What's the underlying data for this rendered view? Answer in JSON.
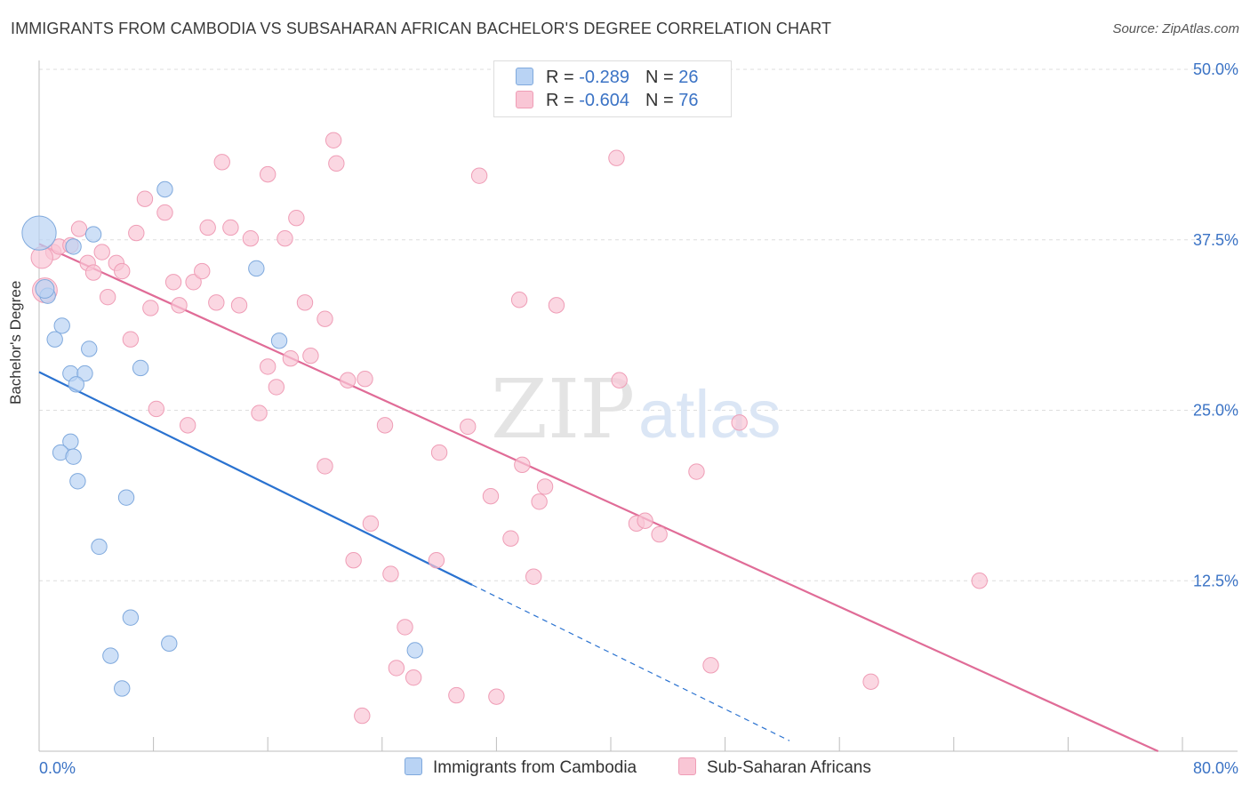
{
  "header": {
    "title": "IMMIGRANTS FROM CAMBODIA VS SUBSAHARAN AFRICAN BACHELOR'S DEGREE CORRELATION CHART",
    "source": "Source: ZipAtlas.com"
  },
  "colors": {
    "blue_fill": "#b9d3f4",
    "blue_stroke": "#7fa9dd",
    "blue_line": "#2a72d0",
    "pink_fill": "#f9c6d5",
    "pink_stroke": "#ef9db6",
    "pink_line": "#e06c97",
    "axis_text": "#3b73c5"
  },
  "legend": {
    "rows": [
      {
        "r_label": "R = ",
        "r_value": "-0.289",
        "n_label": "N = ",
        "n_value": "26"
      },
      {
        "r_label": "R = ",
        "r_value": "-0.604",
        "n_label": "N = ",
        "n_value": "76"
      }
    ]
  },
  "watermark": {
    "zip": "ZIP",
    "atlas": "atlas"
  },
  "chart_data": {
    "type": "scatter",
    "xlabel": "",
    "ylabel": "Bachelor's Degree",
    "xlim": [
      0,
      80
    ],
    "ylim": [
      0,
      50
    ],
    "x_tick_labels": [
      "0.0%",
      "80.0%"
    ],
    "y_tick_labels": [
      "12.5%",
      "25.0%",
      "37.5%",
      "50.0%"
    ],
    "y_ticks": [
      12.5,
      25.0,
      37.5,
      50.0
    ],
    "grid": true,
    "series": [
      {
        "name": "Immigrants from Cambodia",
        "r": -0.289,
        "n": 26,
        "trend": {
          "x0": 0,
          "y0": 27.8,
          "x1": 30.3,
          "y1": 12.2,
          "dash_to_x": 52.5
        },
        "points": [
          [
            0.0,
            38.0
          ],
          [
            0.6,
            33.4
          ],
          [
            0.4,
            33.9
          ],
          [
            2.4,
            37.0
          ],
          [
            3.8,
            37.9
          ],
          [
            1.1,
            30.2
          ],
          [
            1.6,
            31.2
          ],
          [
            3.5,
            29.5
          ],
          [
            2.2,
            27.7
          ],
          [
            3.2,
            27.7
          ],
          [
            2.6,
            26.9
          ],
          [
            7.1,
            28.1
          ],
          [
            8.8,
            41.2
          ],
          [
            15.2,
            35.4
          ],
          [
            16.8,
            30.1
          ],
          [
            2.2,
            22.7
          ],
          [
            1.5,
            21.9
          ],
          [
            2.4,
            21.6
          ],
          [
            2.7,
            19.8
          ],
          [
            6.1,
            18.6
          ],
          [
            4.2,
            15.0
          ],
          [
            6.4,
            9.8
          ],
          [
            9.1,
            7.9
          ],
          [
            5.0,
            7.0
          ],
          [
            5.8,
            4.6
          ],
          [
            26.3,
            7.4
          ]
        ],
        "sizes": [
          22,
          10,
          12,
          10,
          10,
          10,
          10,
          10,
          10,
          10,
          10,
          10,
          10,
          10,
          10,
          10,
          10,
          10,
          10,
          10,
          10,
          10,
          10,
          10,
          10,
          10
        ]
      },
      {
        "name": "Sub-Saharan Africans",
        "r": -0.604,
        "n": 76,
        "trend": {
          "x0": 0,
          "y0": 37.2,
          "x1": 78.3,
          "y1": 0.0
        },
        "points": [
          [
            0.4,
            33.8
          ],
          [
            1.0,
            36.6
          ],
          [
            1.4,
            37.0
          ],
          [
            2.2,
            37.1
          ],
          [
            2.8,
            38.3
          ],
          [
            3.4,
            35.8
          ],
          [
            3.8,
            35.1
          ],
          [
            4.4,
            36.6
          ],
          [
            4.8,
            33.3
          ],
          [
            5.4,
            35.8
          ],
          [
            5.8,
            35.2
          ],
          [
            6.4,
            30.2
          ],
          [
            6.8,
            38.0
          ],
          [
            7.4,
            40.5
          ],
          [
            7.8,
            32.5
          ],
          [
            8.2,
            25.1
          ],
          [
            8.8,
            39.5
          ],
          [
            9.4,
            34.4
          ],
          [
            9.8,
            32.7
          ],
          [
            10.4,
            23.9
          ],
          [
            10.8,
            34.4
          ],
          [
            11.4,
            35.2
          ],
          [
            11.8,
            38.4
          ],
          [
            12.4,
            32.9
          ],
          [
            12.8,
            43.2
          ],
          [
            13.4,
            38.4
          ],
          [
            14.0,
            32.7
          ],
          [
            14.8,
            37.6
          ],
          [
            15.4,
            24.8
          ],
          [
            16.0,
            42.3
          ],
          [
            16.0,
            28.2
          ],
          [
            16.6,
            26.7
          ],
          [
            17.2,
            37.6
          ],
          [
            17.6,
            28.8
          ],
          [
            18.0,
            39.1
          ],
          [
            18.6,
            32.9
          ],
          [
            19.0,
            29.0
          ],
          [
            20.0,
            31.7
          ],
          [
            20.6,
            44.8
          ],
          [
            20.8,
            43.1
          ],
          [
            20.0,
            20.9
          ],
          [
            21.6,
            27.2
          ],
          [
            22.0,
            14.0
          ],
          [
            22.6,
            2.6
          ],
          [
            22.8,
            27.3
          ],
          [
            23.2,
            16.7
          ],
          [
            24.2,
            23.9
          ],
          [
            24.6,
            13.0
          ],
          [
            25.0,
            6.1
          ],
          [
            25.6,
            9.1
          ],
          [
            26.2,
            5.4
          ],
          [
            27.8,
            14.0
          ],
          [
            28.0,
            21.9
          ],
          [
            29.2,
            4.1
          ],
          [
            30.0,
            23.8
          ],
          [
            30.8,
            42.2
          ],
          [
            31.6,
            18.7
          ],
          [
            32.0,
            4.0
          ],
          [
            33.0,
            15.6
          ],
          [
            33.6,
            33.1
          ],
          [
            33.8,
            21.0
          ],
          [
            34.6,
            12.8
          ],
          [
            35.0,
            18.3
          ],
          [
            35.4,
            19.4
          ],
          [
            36.2,
            32.7
          ],
          [
            40.4,
            43.5
          ],
          [
            40.6,
            27.2
          ],
          [
            41.8,
            16.7
          ],
          [
            42.4,
            16.9
          ],
          [
            43.4,
            15.9
          ],
          [
            46.0,
            20.5
          ],
          [
            47.0,
            6.3
          ],
          [
            49.0,
            24.1
          ],
          [
            58.2,
            5.1
          ],
          [
            65.8,
            12.5
          ],
          [
            0.2,
            36.2
          ]
        ],
        "sizes": [
          16,
          10,
          10,
          10,
          10,
          10,
          10,
          10,
          10,
          10,
          10,
          10,
          10,
          10,
          10,
          10,
          10,
          10,
          10,
          10,
          10,
          10,
          10,
          10,
          10,
          10,
          10,
          10,
          10,
          10,
          10,
          10,
          10,
          10,
          10,
          10,
          10,
          10,
          10,
          10,
          10,
          10,
          10,
          10,
          10,
          10,
          10,
          10,
          10,
          10,
          10,
          10,
          10,
          10,
          10,
          10,
          10,
          10,
          10,
          10,
          10,
          10,
          10,
          10,
          10,
          10,
          10,
          10,
          10,
          10,
          10,
          10,
          10,
          10,
          10,
          14
        ]
      }
    ]
  }
}
